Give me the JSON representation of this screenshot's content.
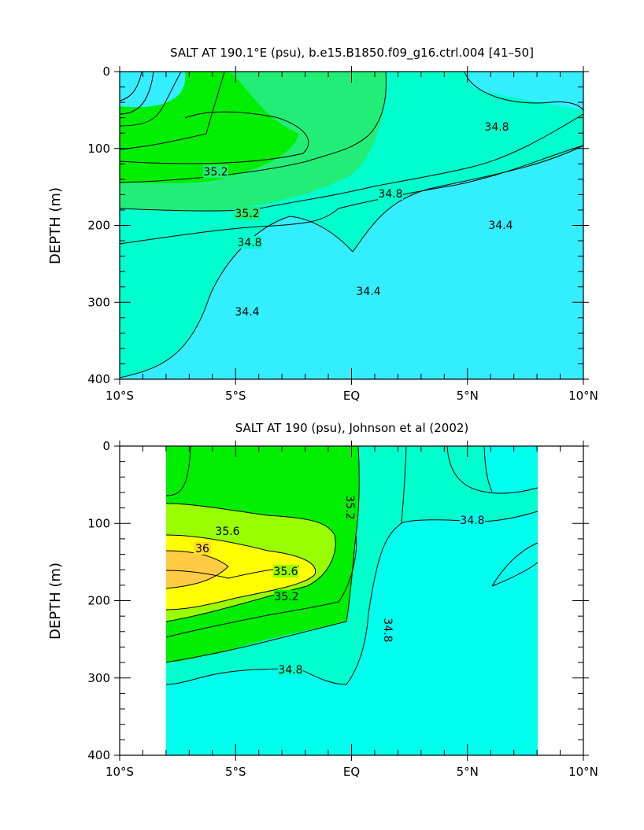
{
  "chart_data": [
    {
      "type": "contour",
      "title": "SALT AT 190.1°E (psu), b.e15.B1850.f09_g16.ctrl.004 [41–50]",
      "ylabel": "DEPTH (m)",
      "xlabel": "",
      "x_ticks": [
        "10°S",
        "5°S",
        "EQ",
        "5°N",
        "10°N"
      ],
      "y_ticks": [
        "0",
        "100",
        "200",
        "300",
        "400"
      ],
      "xlim": [
        -10,
        10
      ],
      "ylim": [
        0,
        400
      ],
      "contour_labels": [
        "35.2",
        "35.2",
        "34.8",
        "34.8",
        "34.8",
        "34.4",
        "34.4",
        "34.4"
      ],
      "colors": {
        "low": "#33eeff",
        "mid": "#00ffcc",
        "high": "#22ee77",
        "highest": "#00ee00"
      }
    },
    {
      "type": "contour",
      "title": "SALT AT 190 (psu), Johnson et al (2002)",
      "ylabel": "DEPTH (m)",
      "xlabel": "",
      "x_ticks": [
        "10°S",
        "5°S",
        "EQ",
        "5°N",
        "10°N"
      ],
      "y_ticks": [
        "0",
        "100",
        "200",
        "300",
        "400"
      ],
      "xlim": [
        -10,
        10
      ],
      "ylim": [
        0,
        400
      ],
      "data_xrange": [
        -8,
        8
      ],
      "contour_labels": [
        "35.2",
        "35.6",
        "36",
        "35.6",
        "35.2",
        "34.8",
        "34.8",
        "34.8"
      ],
      "colors": {
        "low": "#00ffee",
        "mid": "#00ffcc",
        "green": "#00ee00",
        "lime": "#99ff00",
        "yellow": "#ffff00",
        "gold": "#ffdd22",
        "orange": "#ffcc44"
      }
    }
  ]
}
